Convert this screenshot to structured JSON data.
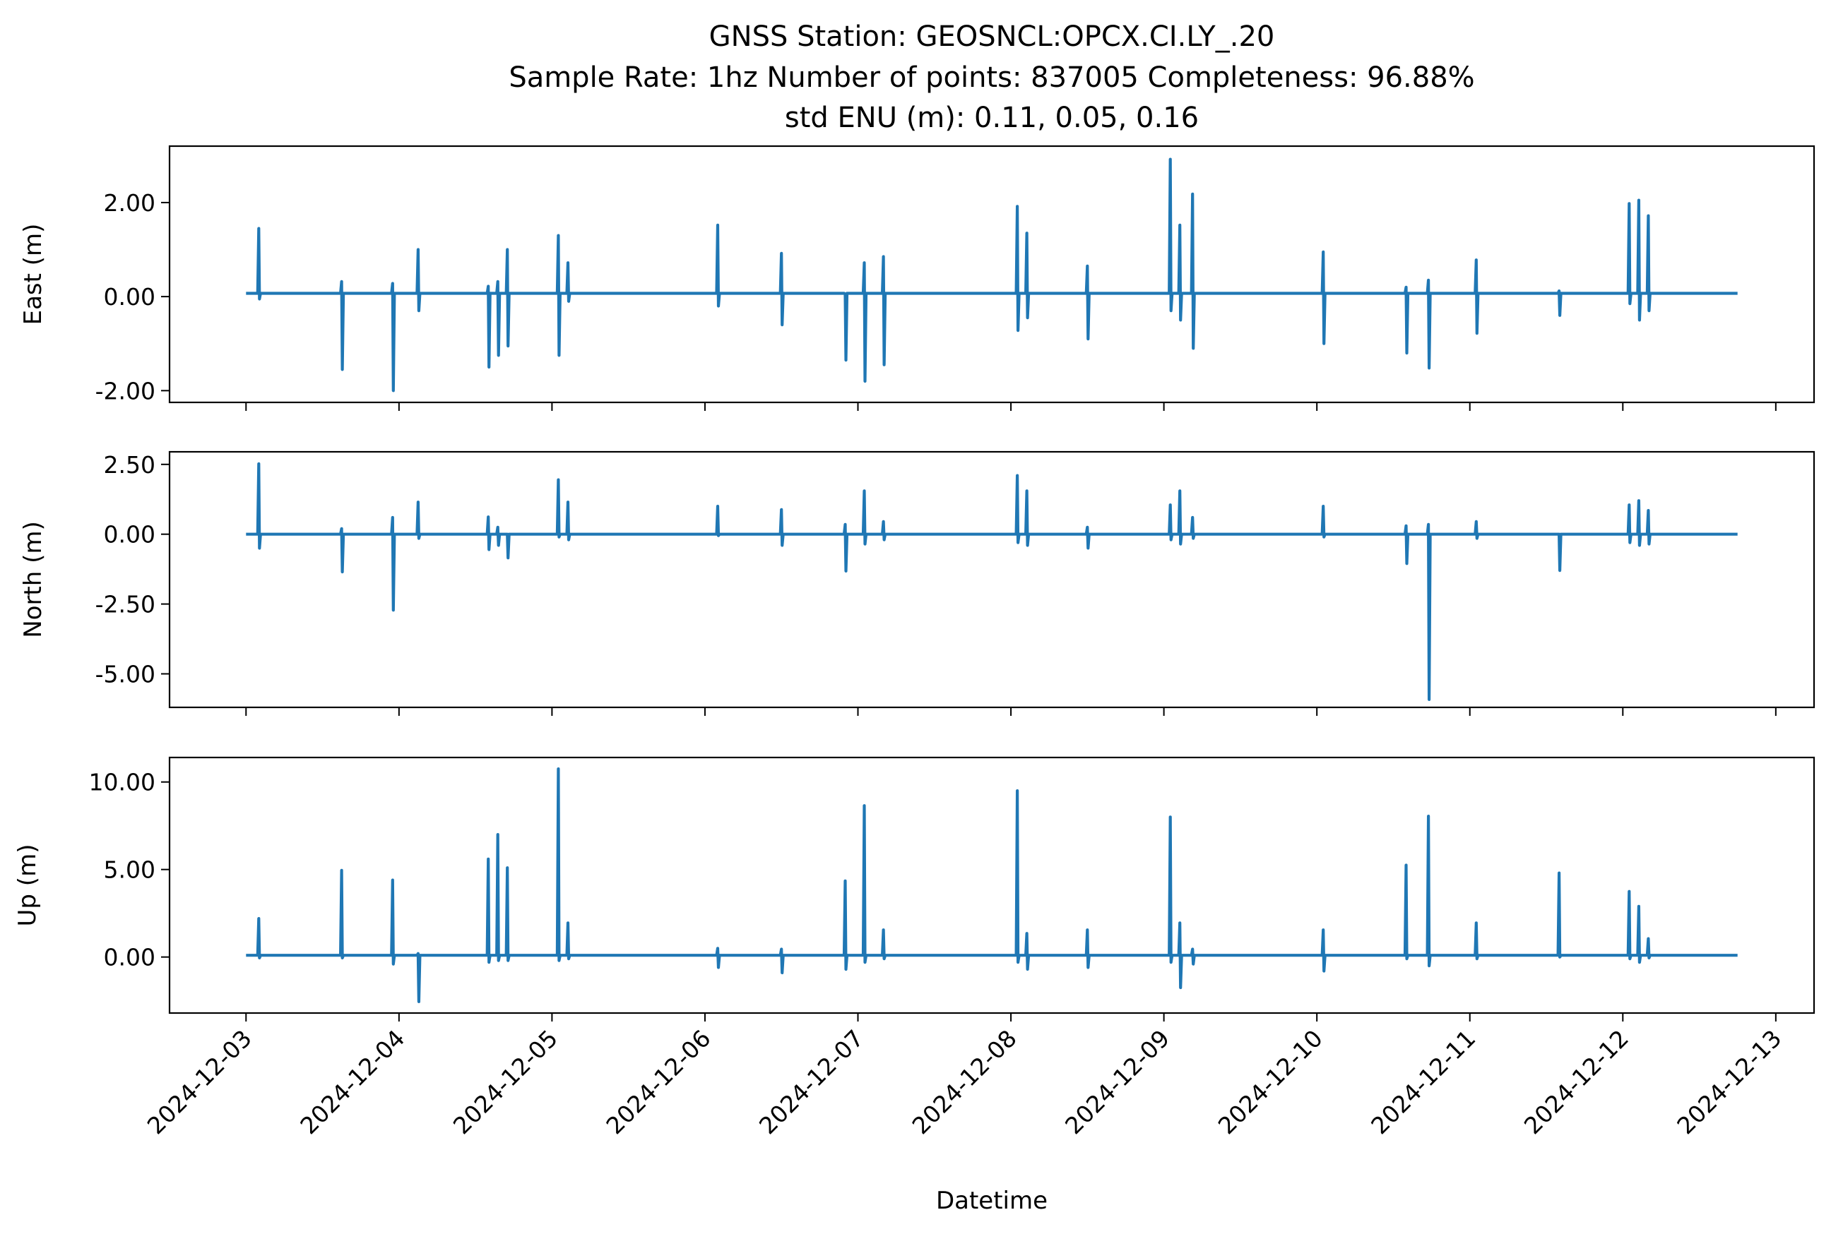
{
  "title": {
    "line1": "GNSS Station: GEOSNCL:OPCX.CI.LY_.20",
    "line2": "Sample Rate: 1hz   Number of points: 837005    Completeness:  96.88%",
    "line3": "std ENU (m):  0.11, 0.05, 0.16"
  },
  "colors": {
    "series": "#1f77b4"
  },
  "chart_data": {
    "type": "line",
    "title": "GNSS Station: GEOSNCL:OPCX.CI.LY_.20",
    "subtitle": "Sample Rate: 1hz   Number of points: 837005    Completeness:  96.88%   std ENU (m):  0.11, 0.05, 0.16",
    "xlabel": "Datetime",
    "x_tick_labels": [
      "2024-12-03",
      "2024-12-04",
      "2024-12-05",
      "2024-12-06",
      "2024-12-07",
      "2024-12-08",
      "2024-12-09",
      "2024-12-10",
      "2024-12-11",
      "2024-12-12",
      "2024-12-13"
    ],
    "xlim": [
      "2024-12-02T12:00",
      "2024-12-13T06:00"
    ],
    "x_range": [
      "2024-12-03T00:00",
      "2024-12-12T18:00"
    ],
    "grid": false,
    "legend": "none",
    "panels": [
      {
        "ylabel": "East (m)",
        "ylim": [
          -2.25,
          3.2
        ],
        "y_ticks": [
          -2.0,
          0.0,
          2.0
        ],
        "y_tick_labels": [
          "-2.00",
          "0.00",
          "2.00"
        ],
        "baseline": 0.07,
        "spikes": [
          [
            "2024-12-03T02:00",
            1.45,
            -0.05
          ],
          [
            "2024-12-03T15:00",
            0.32,
            -1.55
          ],
          [
            "2024-12-03T23:00",
            0.28,
            -2.0
          ],
          [
            "2024-12-04T03:00",
            1.0,
            -0.3
          ],
          [
            "2024-12-04T14:00",
            0.22,
            -1.5
          ],
          [
            "2024-12-04T15:30",
            0.32,
            -1.25
          ],
          [
            "2024-12-04T17:00",
            1.0,
            -1.05
          ],
          [
            "2024-12-05T01:00",
            1.3,
            -1.25
          ],
          [
            "2024-12-05T02:30",
            0.72,
            -0.1
          ],
          [
            "2024-12-06T02:00",
            1.52,
            -0.2
          ],
          [
            "2024-12-06T12:00",
            0.92,
            -0.6
          ],
          [
            "2024-12-06T22:00",
            0.05,
            -1.35
          ],
          [
            "2024-12-07T01:00",
            0.72,
            -1.8
          ],
          [
            "2024-12-07T04:00",
            0.85,
            -1.45
          ],
          [
            "2024-12-08T01:00",
            1.92,
            -0.72
          ],
          [
            "2024-12-08T02:30",
            1.35,
            -0.45
          ],
          [
            "2024-12-08T12:00",
            0.65,
            -0.9
          ],
          [
            "2024-12-09T01:00",
            2.92,
            -0.3
          ],
          [
            "2024-12-09T02:30",
            1.52,
            -0.5
          ],
          [
            "2024-12-09T04:30",
            2.18,
            -1.1
          ],
          [
            "2024-12-10T01:00",
            0.95,
            -1.0
          ],
          [
            "2024-12-10T14:00",
            0.2,
            -1.2
          ],
          [
            "2024-12-10T17:30",
            0.35,
            -1.52
          ],
          [
            "2024-12-11T01:00",
            0.78,
            -0.78
          ],
          [
            "2024-12-11T14:00",
            0.12,
            -0.4
          ],
          [
            "2024-12-12T01:00",
            1.98,
            -0.15
          ],
          [
            "2024-12-12T02:30",
            2.05,
            -0.5
          ],
          [
            "2024-12-12T04:00",
            1.72,
            -0.3
          ]
        ]
      },
      {
        "ylabel": "North (m)",
        "ylim": [
          -6.2,
          2.95
        ],
        "y_ticks": [
          -5.0,
          -2.5,
          0.0,
          2.5
        ],
        "y_tick_labels": [
          "-5.00",
          "-2.50",
          "0.00",
          "2.50"
        ],
        "baseline": 0.0,
        "spikes": [
          [
            "2024-12-03T02:00",
            2.52,
            -0.5
          ],
          [
            "2024-12-03T15:00",
            0.2,
            -1.35
          ],
          [
            "2024-12-03T23:00",
            0.6,
            -2.72
          ],
          [
            "2024-12-04T03:00",
            1.15,
            -0.15
          ],
          [
            "2024-12-04T14:00",
            0.62,
            -0.55
          ],
          [
            "2024-12-04T15:30",
            0.25,
            -0.4
          ],
          [
            "2024-12-04T17:00",
            0.0,
            -0.85
          ],
          [
            "2024-12-05T01:00",
            1.95,
            -0.1
          ],
          [
            "2024-12-05T02:30",
            1.15,
            -0.2
          ],
          [
            "2024-12-06T02:00",
            1.0,
            -0.05
          ],
          [
            "2024-12-06T12:00",
            0.88,
            -0.4
          ],
          [
            "2024-12-06T22:00",
            0.35,
            -1.32
          ],
          [
            "2024-12-07T01:00",
            1.55,
            -0.35
          ],
          [
            "2024-12-07T04:00",
            0.45,
            -0.2
          ],
          [
            "2024-12-08T01:00",
            2.1,
            -0.3
          ],
          [
            "2024-12-08T02:30",
            1.55,
            -0.4
          ],
          [
            "2024-12-08T12:00",
            0.25,
            -0.5
          ],
          [
            "2024-12-09T01:00",
            1.05,
            -0.2
          ],
          [
            "2024-12-09T02:30",
            1.55,
            -0.35
          ],
          [
            "2024-12-09T04:30",
            0.6,
            -0.15
          ],
          [
            "2024-12-10T01:00",
            1.0,
            -0.1
          ],
          [
            "2024-12-10T14:00",
            0.3,
            -1.05
          ],
          [
            "2024-12-10T17:30",
            0.35,
            -5.92
          ],
          [
            "2024-12-11T01:00",
            0.45,
            -0.15
          ],
          [
            "2024-12-11T14:00",
            0.0,
            -1.3
          ],
          [
            "2024-12-12T01:00",
            1.05,
            -0.3
          ],
          [
            "2024-12-12T02:30",
            1.2,
            -0.4
          ],
          [
            "2024-12-12T04:00",
            0.85,
            -0.35
          ]
        ]
      },
      {
        "ylabel": "Up (m)",
        "ylim": [
          -3.2,
          11.4
        ],
        "y_ticks": [
          0.0,
          5.0,
          10.0
        ],
        "y_tick_labels": [
          "0.00",
          "5.00",
          "10.00"
        ],
        "baseline": 0.1,
        "spikes": [
          [
            "2024-12-03T02:00",
            2.2,
            -0.05
          ],
          [
            "2024-12-03T15:00",
            4.95,
            -0.05
          ],
          [
            "2024-12-03T23:00",
            4.4,
            -0.4
          ],
          [
            "2024-12-04T03:00",
            0.2,
            -2.55
          ],
          [
            "2024-12-04T14:00",
            5.6,
            -0.3
          ],
          [
            "2024-12-04T15:30",
            7.0,
            -0.2
          ],
          [
            "2024-12-04T17:00",
            5.1,
            -0.2
          ],
          [
            "2024-12-05T01:00",
            10.75,
            -0.2
          ],
          [
            "2024-12-05T02:30",
            1.95,
            -0.1
          ],
          [
            "2024-12-06T02:00",
            0.5,
            -0.6
          ],
          [
            "2024-12-06T12:00",
            0.45,
            -0.9
          ],
          [
            "2024-12-06T22:00",
            4.35,
            -0.7
          ],
          [
            "2024-12-07T01:00",
            8.65,
            -0.3
          ],
          [
            "2024-12-07T04:00",
            1.55,
            -0.1
          ],
          [
            "2024-12-08T01:00",
            9.5,
            -0.3
          ],
          [
            "2024-12-08T02:30",
            1.35,
            -0.7
          ],
          [
            "2024-12-08T12:00",
            1.55,
            -0.6
          ],
          [
            "2024-12-09T01:00",
            8.0,
            -0.3
          ],
          [
            "2024-12-09T02:30",
            1.95,
            -1.75
          ],
          [
            "2024-12-09T04:30",
            0.45,
            -0.4
          ],
          [
            "2024-12-10T01:00",
            1.55,
            -0.8
          ],
          [
            "2024-12-10T14:00",
            5.25,
            -0.1
          ],
          [
            "2024-12-10T17:30",
            8.05,
            -0.5
          ],
          [
            "2024-12-11T01:00",
            1.95,
            -0.1
          ],
          [
            "2024-12-11T14:00",
            4.8,
            0.0
          ],
          [
            "2024-12-12T01:00",
            3.75,
            -0.1
          ],
          [
            "2024-12-12T02:30",
            2.9,
            -0.3
          ],
          [
            "2024-12-12T04:00",
            1.05,
            -0.05
          ]
        ]
      }
    ]
  }
}
